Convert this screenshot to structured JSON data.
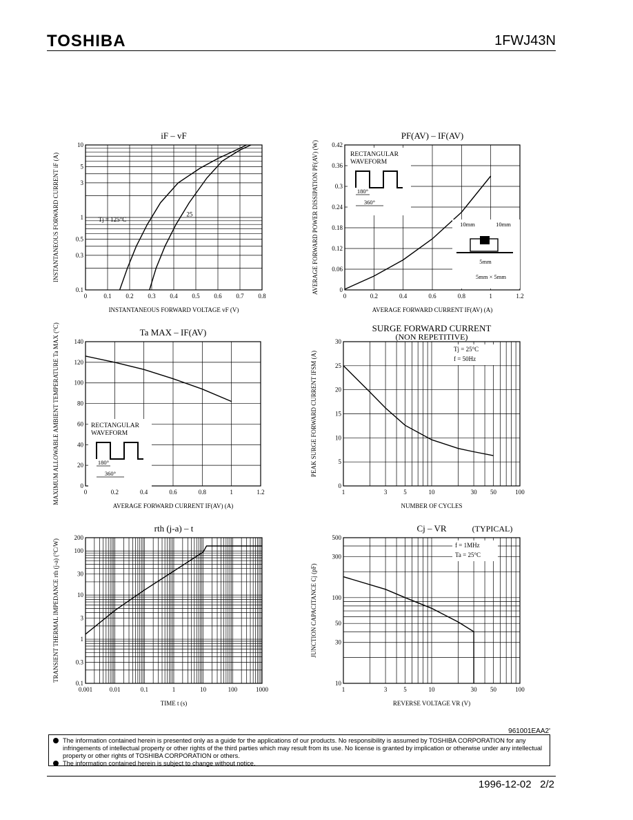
{
  "header": {
    "brand": "TOSHIBA",
    "part_number": "1FWJ43N"
  },
  "footer": {
    "doc_code": "961001EAA2'",
    "notices": [
      "The information contained herein is presented only as a guide for the applications of our products. No responsibility is assumed by TOSHIBA CORPORATION for any infringements of intellectual property or other rights of the third parties which may result from its use. No license is granted by implication or otherwise under any intellectual property or other rights of TOSHIBA CORPORATION or others.",
      "The information contained herein is subject to change without notice."
    ],
    "date": "1996-12-02",
    "page": "2/2"
  },
  "chart_data": [
    {
      "id": "if_vf",
      "type": "line",
      "title": "iF – vF",
      "xlabel": "INSTANTANEOUS FORWARD VOLTAGE   vF   (V)",
      "ylabel": "INSTANTANEOUS FORWARD CURRENT   iF   (A)",
      "xscale": "linear",
      "yscale": "log",
      "xlim": [
        0,
        0.8
      ],
      "ylim": [
        0.1,
        10
      ],
      "xticks": [
        0,
        0.1,
        0.2,
        0.3,
        0.4,
        0.5,
        0.6,
        0.7,
        0.8
      ],
      "yticks": [
        0.1,
        0.3,
        0.5,
        1,
        3,
        5,
        10
      ],
      "series": [
        {
          "name": "Tj = 125°C",
          "x": [
            0.155,
            0.19,
            0.23,
            0.28,
            0.34,
            0.42,
            0.52,
            0.6,
            0.7,
            0.73
          ],
          "y": [
            0.1,
            0.2,
            0.4,
            0.8,
            1.6,
            3.0,
            4.8,
            6.5,
            9.0,
            10
          ]
        },
        {
          "name": "25",
          "x": [
            0.29,
            0.32,
            0.36,
            0.41,
            0.47,
            0.55,
            0.62,
            0.7,
            0.75
          ],
          "y": [
            0.1,
            0.2,
            0.4,
            0.8,
            1.6,
            3.5,
            6.0,
            8.5,
            10
          ]
        }
      ]
    },
    {
      "id": "pf_if",
      "type": "line",
      "title": "PF(AV) – IF(AV)",
      "xlabel": "AVERAGE FORWARD CURRENT   IF(AV)   (A)",
      "ylabel": "AVERAGE FORWARD POWER DISSIPATION   PF(AV)   (W)",
      "xscale": "linear",
      "yscale": "linear",
      "xlim": [
        0,
        1.2
      ],
      "ylim": [
        0,
        0.42
      ],
      "xticks": [
        0,
        0.2,
        0.4,
        0.6,
        0.8,
        1.0,
        1.2
      ],
      "yticks": [
        0,
        0.06,
        0.12,
        0.18,
        0.24,
        0.3,
        0.36,
        0.42
      ],
      "annotations": [
        "RECTANGULAR",
        "WAVEFORM",
        "180°",
        "360°",
        "10mm",
        "10mm",
        "5mm",
        "5mm × 5mm"
      ],
      "series": [
        {
          "x": [
            0,
            0.2,
            0.4,
            0.6,
            0.8,
            1.0
          ],
          "y": [
            0.002,
            0.04,
            0.087,
            0.148,
            0.225,
            0.33
          ]
        }
      ]
    },
    {
      "id": "ta_if",
      "type": "line",
      "title": "Ta MAX – IF(AV)",
      "xlabel": "AVERAGE FORWARD CURRENT   IF(AV)   (A)",
      "ylabel": "MAXIMUM ALLOWABLE AMBIENT TEMPERATURE   Ta MAX   (°C)",
      "xscale": "linear",
      "yscale": "linear",
      "xlim": [
        0,
        1.2
      ],
      "ylim": [
        0,
        140
      ],
      "xticks": [
        0,
        0.2,
        0.4,
        0.6,
        0.8,
        1.0,
        1.2
      ],
      "yticks": [
        0,
        20,
        40,
        60,
        80,
        100,
        120,
        140
      ],
      "annotations": [
        "RECTANGULAR",
        "WAVEFORM",
        "180°",
        "360°"
      ],
      "series": [
        {
          "x": [
            0,
            0.2,
            0.4,
            0.6,
            0.8,
            1.0
          ],
          "y": [
            126,
            120,
            113,
            104,
            94,
            82
          ]
        }
      ]
    },
    {
      "id": "ifsm_n",
      "type": "line",
      "title": "SURGE FORWARD CURRENT",
      "subtitle": "(NON REPETITIVE)",
      "xlabel": "NUMBER OF CYCLES",
      "ylabel": "PEAK SURGE FORWARD CURRENT   IFSM   (A)",
      "xscale": "log",
      "yscale": "linear",
      "xlim": [
        1,
        100
      ],
      "ylim": [
        0,
        30
      ],
      "xticks": [
        1,
        3,
        5,
        10,
        30,
        50,
        100
      ],
      "yticks": [
        0,
        5,
        10,
        15,
        20,
        25,
        30
      ],
      "annotations": [
        "Tj = 25°C",
        "f = 50Hz"
      ],
      "series": [
        {
          "x": [
            1,
            2,
            3,
            5,
            10,
            20,
            30,
            50
          ],
          "y": [
            25,
            19.5,
            16.2,
            12.6,
            9.6,
            7.8,
            7.1,
            6.3
          ]
        }
      ]
    },
    {
      "id": "rth_t",
      "type": "line",
      "title": "rth (j-a) – t",
      "xlabel": "TIME   t   (s)",
      "ylabel": "TRANSIENT THERMAL IMPEDANCE   rth (j-a)   (°C/W)",
      "xscale": "log",
      "yscale": "log",
      "xlim": [
        0.001,
        1000
      ],
      "ylim": [
        0.1,
        200
      ],
      "xticks": [
        0.001,
        0.01,
        0.1,
        1,
        10,
        100,
        1000
      ],
      "xtick_labels": [
        "0.001",
        "0.01",
        "0.1",
        "1",
        "10",
        "100",
        "1000"
      ],
      "yticks": [
        0.1,
        0.3,
        1,
        3,
        10,
        30,
        100,
        200
      ],
      "series": [
        {
          "x": [
            0.001,
            0.01,
            0.1,
            1,
            10,
            13,
            100,
            1000
          ],
          "y": [
            1.3,
            4.5,
            13,
            35,
            95,
            130,
            130,
            130
          ]
        }
      ]
    },
    {
      "id": "cj_vr",
      "type": "line",
      "title": "Cj – VR",
      "subtitle": "(TYPICAL)",
      "xlabel": "REVERSE VOLTAGE   VR   (V)",
      "ylabel": "JUNCTION CAPACITANCE   Cj   (pF)",
      "xscale": "log",
      "yscale": "log",
      "xlim": [
        1,
        100
      ],
      "ylim": [
        10,
        500
      ],
      "xticks": [
        1,
        3,
        5,
        10,
        30,
        50,
        100
      ],
      "yticks": [
        10,
        30,
        50,
        100,
        300,
        500
      ],
      "annotations": [
        "f = 1MHz",
        "Ta = 25°C"
      ],
      "series": [
        {
          "x": [
            1,
            3,
            5,
            10,
            20,
            30,
            30
          ],
          "y": [
            175,
            125,
            100,
            75,
            52,
            40,
            10
          ]
        }
      ]
    }
  ]
}
